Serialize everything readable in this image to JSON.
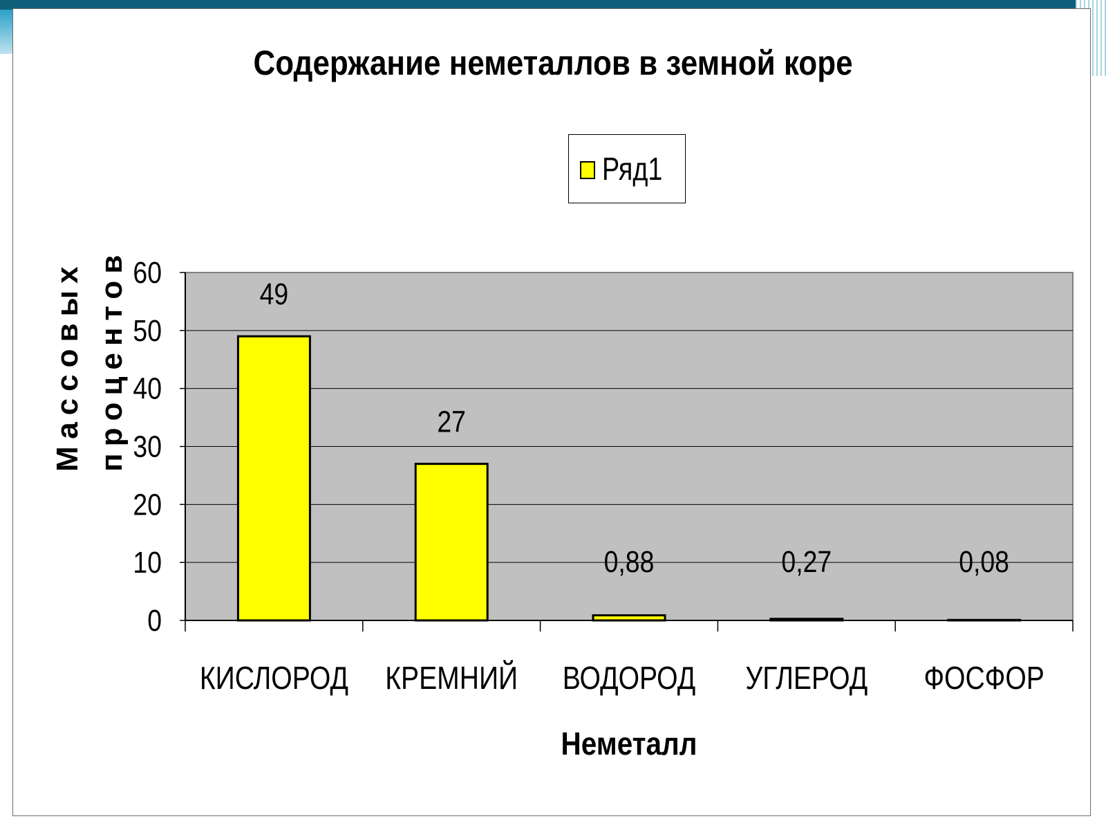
{
  "chart_data": {
    "type": "bar",
    "title": "Содержание неметаллов в земной коре",
    "xlabel": "Неметалл",
    "ylabel_lines": [
      "Массовых",
      "процентов"
    ],
    "categories": [
      "КИСЛОРОД",
      "КРЕМНИЙ",
      "ВОДОРОД",
      "УГЛЕРОД",
      "ФОСФОР"
    ],
    "series": [
      {
        "name": "Ряд1",
        "values": [
          49,
          27,
          0.88,
          0.27,
          0.08
        ],
        "data_labels": [
          "49",
          "27",
          "0,88",
          "0,27",
          "0,08"
        ],
        "color": "#ffff00"
      }
    ],
    "ylim": [
      0,
      60
    ],
    "yticks": [
      0,
      10,
      20,
      30,
      40,
      50,
      60
    ],
    "grid": true,
    "plot_background": "#c0c0c0",
    "legend_position": "top-center"
  }
}
